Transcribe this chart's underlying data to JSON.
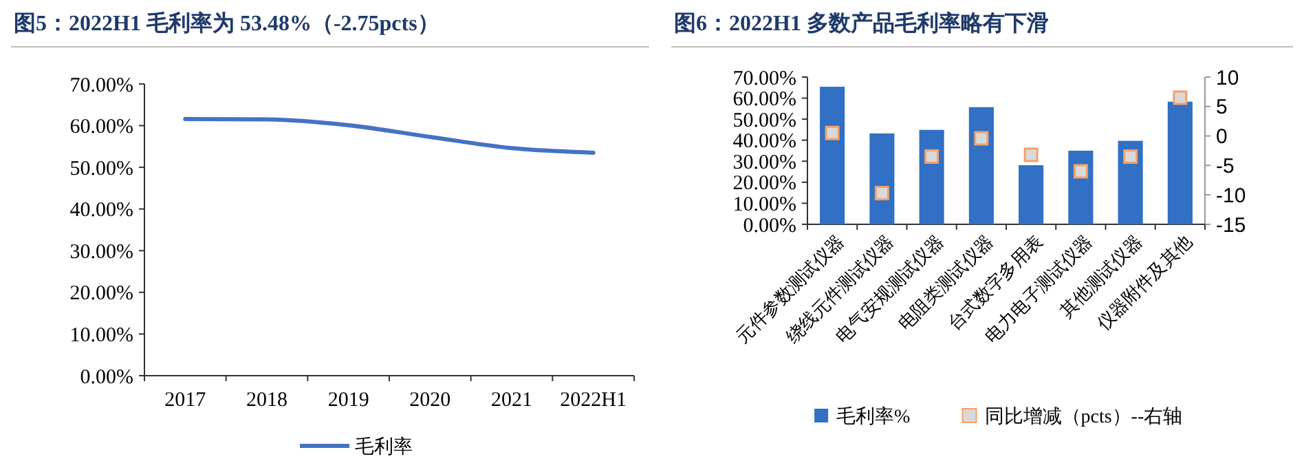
{
  "chart_data": [
    {
      "type": "line",
      "title": "图5：2022H1 毛利率为 53.48%（-2.75pcts）",
      "categories": [
        "2017",
        "2018",
        "2019",
        "2020",
        "2021",
        "2022H1"
      ],
      "series": [
        {
          "name": "毛利率",
          "color": "#4472c4",
          "values": [
            61.6,
            61.5,
            60.1,
            57.3,
            54.6,
            53.5
          ]
        }
      ],
      "ylim": [
        0,
        70
      ],
      "yticks": [
        {
          "value": 0,
          "label": "0.00%"
        },
        {
          "value": 10,
          "label": "10.00%"
        },
        {
          "value": 20,
          "label": "20.00%"
        },
        {
          "value": 30,
          "label": "30.00%"
        },
        {
          "value": 40,
          "label": "40.00%"
        },
        {
          "value": 50,
          "label": "50.00%"
        },
        {
          "value": 60,
          "label": "60.00%"
        },
        {
          "value": 70,
          "label": "70.00%"
        }
      ],
      "grid": false,
      "legend": "bottom"
    },
    {
      "type": "bar",
      "title": "图6：2022H1 多数产品毛利率略有下滑",
      "categories": [
        "元件参数测试仪器",
        "绕线元件测试仪器",
        "电气安规测试仪器",
        "电阻类测试仪器",
        "台式数字多用表",
        "电力电子测试仪器",
        "其他测试仪器",
        "仪器附件及其他"
      ],
      "series": [
        {
          "name": "毛利率%",
          "color": "#3170c4",
          "values": [
            65.4,
            43.2,
            44.9,
            55.7,
            28.1,
            35.0,
            39.7,
            58.3
          ]
        },
        {
          "name": "同比增减（pcts）--右轴",
          "type": "scatter",
          "axis": "y2",
          "marker": "square",
          "color": "#d9d9d9",
          "values": [
            0.5,
            -9.7,
            -3.5,
            -0.4,
            -3.2,
            -6.0,
            -3.5,
            6.5
          ]
        }
      ],
      "ylim": [
        0,
        70
      ],
      "yticks": [
        {
          "value": 0,
          "label": "0.00%"
        },
        {
          "value": 10,
          "label": "10.00%"
        },
        {
          "value": 20,
          "label": "20.00%"
        },
        {
          "value": 30,
          "label": "30.00%"
        },
        {
          "value": 40,
          "label": "40.00%"
        },
        {
          "value": 50,
          "label": "50.00%"
        },
        {
          "value": 60,
          "label": "60.00%"
        },
        {
          "value": 70,
          "label": "70.00%"
        }
      ],
      "y2lim": [
        -15,
        10
      ],
      "y2ticks": [
        -15,
        -10,
        -5,
        0,
        5,
        10
      ],
      "grid": false,
      "legend": "bottom"
    }
  ]
}
